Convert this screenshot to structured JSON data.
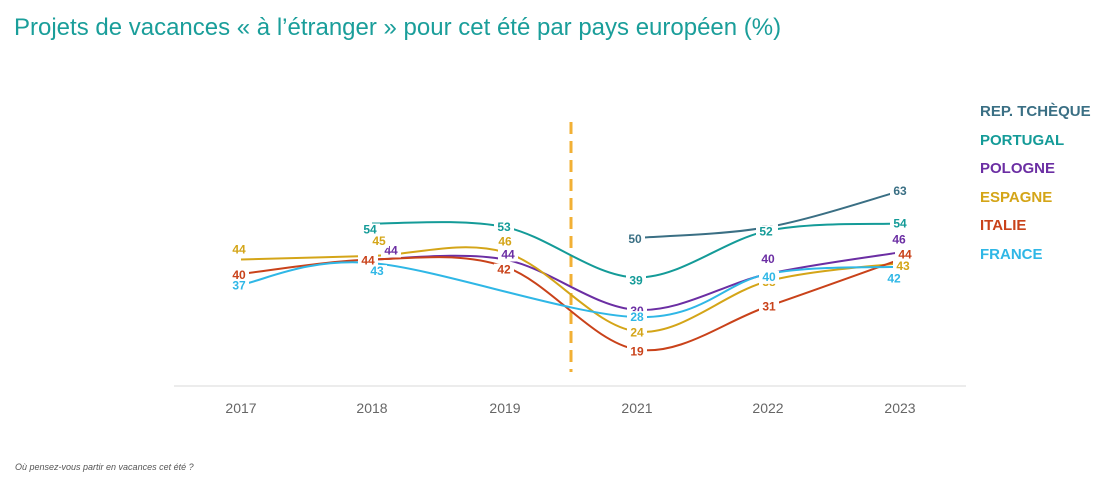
{
  "title": "Projets de vacances « à l’étranger » pour cet été par pays européen (%)",
  "footnote": "Où pensez-vous partir en vacances cet été ?",
  "chart_data": {
    "type": "line",
    "categories": [
      "2017",
      "2018",
      "2019",
      "2021",
      "2022",
      "2023"
    ],
    "divider_between": [
      "2019",
      "2021"
    ],
    "divider_color": "#f2b035",
    "series": [
      {
        "name": "REP. TCHÈQUE",
        "color": "#3a6f84",
        "values": [
          null,
          null,
          null,
          50,
          53,
          63
        ]
      },
      {
        "name": "PORTUGAL",
        "color": "#149b98",
        "values": [
          null,
          54,
          53,
          39,
          52,
          54
        ]
      },
      {
        "name": "POLOGNE",
        "color": "#6b2ea3",
        "values": [
          null,
          44,
          44,
          30,
          40,
          46
        ]
      },
      {
        "name": "ESPAGNE",
        "color": "#d4a518",
        "values": [
          44,
          45,
          46,
          24,
          38,
          43
        ]
      },
      {
        "name": "ITALIE",
        "color": "#c9421a",
        "values": [
          40,
          44,
          42,
          19,
          31,
          44
        ]
      },
      {
        "name": "FRANCE",
        "color": "#2fb7e6",
        "values": [
          37,
          43,
          null,
          28,
          40,
          42
        ]
      }
    ]
  }
}
